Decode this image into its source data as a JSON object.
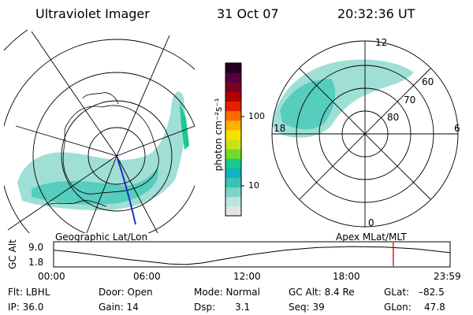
{
  "header": {
    "title": "Ultraviolet Imager",
    "date": "31 Oct 07",
    "time": "20:32:36 UT"
  },
  "colorbar": {
    "unit_label": "photon cm⁻²s⁻¹",
    "ticks": [
      "100",
      "10"
    ],
    "colors": [
      "#e4e4e4",
      "#bde3df",
      "#7fd4c8",
      "#38c4b2",
      "#11b3c0",
      "#1bc98c",
      "#6fdc29",
      "#c6e31a",
      "#f5e000",
      "#ffb000",
      "#ff6a00",
      "#e42000",
      "#b00000",
      "#7a0020",
      "#52003f",
      "#230022"
    ]
  },
  "left_map": {
    "label": "Geographic Lat/Lon"
  },
  "right_map": {
    "label": "Apex MLat/MLT",
    "mlt_labels": {
      "top": "12",
      "right": "6",
      "bottom": "0",
      "left": "18"
    },
    "lat_labels": [
      "60",
      "70",
      "80"
    ]
  },
  "altitude_plot": {
    "ylabel": "GC Alt",
    "y_ticks": [
      "9.0",
      "1.8"
    ],
    "x_ticks": [
      "00:00",
      "06:00",
      "12:00",
      "18:00",
      "23:59"
    ],
    "curve": [
      [
        0,
        7.5
      ],
      [
        1.5,
        6.3
      ],
      [
        3,
        4.8
      ],
      [
        4.5,
        3.2
      ],
      [
        6,
        2.0
      ],
      [
        7,
        1.2
      ],
      [
        8,
        0.9
      ],
      [
        9,
        1.6
      ],
      [
        10,
        3.0
      ],
      [
        12,
        5.5
      ],
      [
        14,
        7.5
      ],
      [
        16,
        8.7
      ],
      [
        18,
        9.1
      ],
      [
        20,
        8.9
      ],
      [
        22,
        8.0
      ],
      [
        23.98,
        6.3
      ]
    ],
    "marker_time": 20.54,
    "marker_color": "#dd0000"
  },
  "info": {
    "flt": "Flt: LBHL",
    "ip": "IP: 36.0",
    "door": "Door: Open",
    "gain": "Gain: 14",
    "mode": "Mode: Normal",
    "dsp": "Dsp:",
    "dsp_val": "3.1",
    "gc_alt": "GC Alt: 8.4 Re",
    "seq": "Seq: 39",
    "glat": "GLat:",
    "glat_val": "–82.5",
    "glon": "GLon:",
    "glon_val": "47.8"
  }
}
